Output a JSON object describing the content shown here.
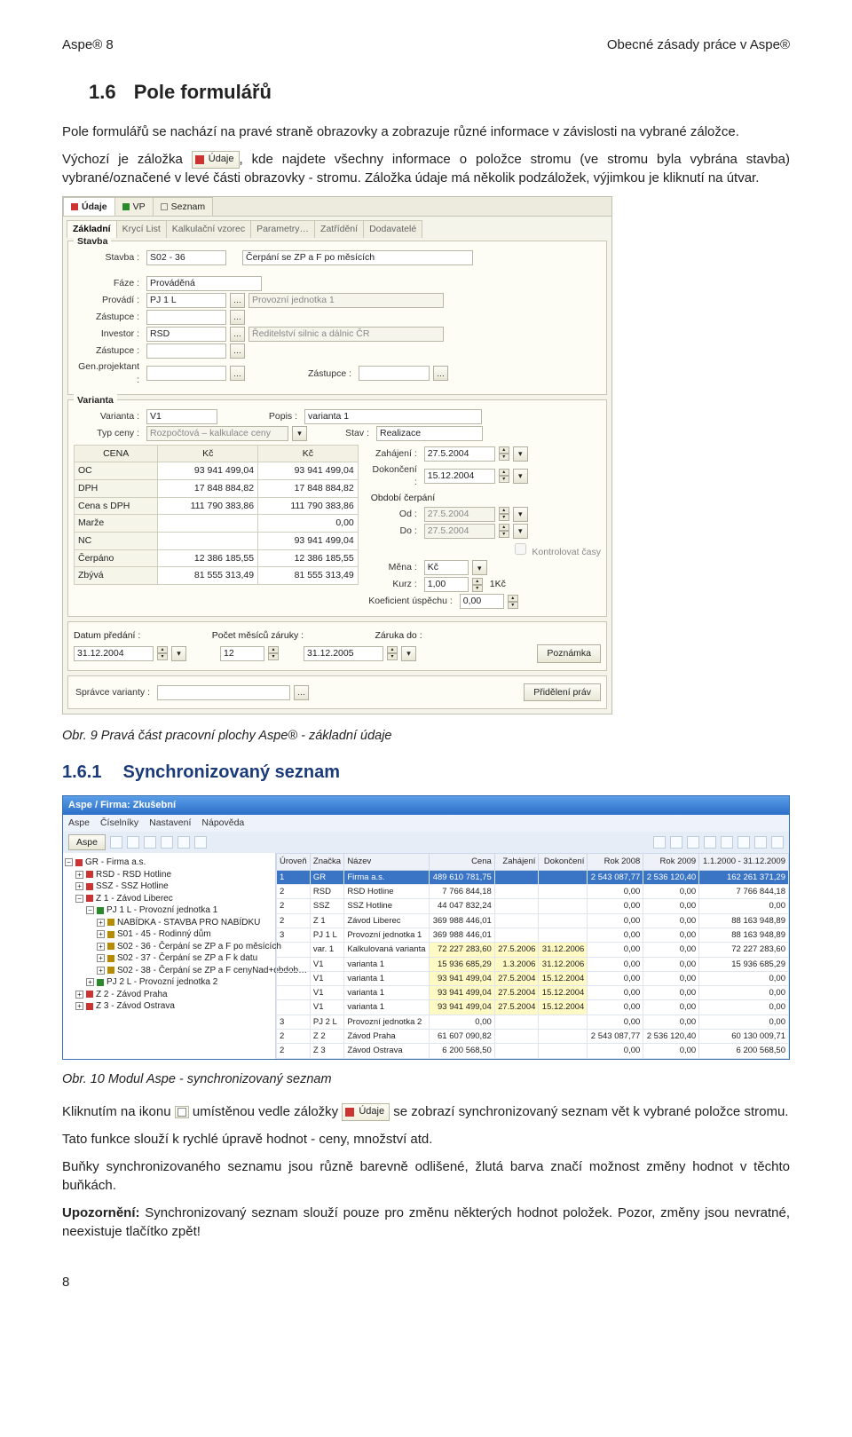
{
  "header": {
    "left": "Aspe® 8",
    "right": "Obecné zásady práce v Aspe®",
    "pageNum": "8"
  },
  "section": {
    "num": "1.6",
    "title": "Pole formulářů"
  },
  "para1": "Pole formulářů se nachází na pravé straně obrazovky a zobrazuje různé informace v závislosti na vybrané záložce.",
  "para2a": "Výchozí je záložka ",
  "para2b": ", kde najdete všechny informace o položce stromu (ve stromu byla vybrána stavba) vybrané/označené v levé části obrazovky - stromu. Záložka údaje má několik podzáložek, výjimkou je kliknutí na útvar.",
  "udajeTab": "Údaje",
  "caption1": "Obr. 9 Pravá část pracovní plochy Aspe® - základní údaje",
  "subsection": {
    "num": "1.6.1",
    "title": "Synchronizovaný seznam"
  },
  "caption2": "Obr. 10 Modul Aspe - synchronizovaný seznam",
  "para3a": "Kliknutím na ikonu ",
  "para3b": " umístěnou vedle záložky ",
  "para3c": " se zobrazí synchronizovaný seznam vět k vybrané položce stromu.",
  "para4": "Tato funkce slouží k rychlé úpravě hodnot - ceny, množství atd.",
  "para5": "Buňky synchronizovaného seznamu jsou různě barevně odlišené, žlutá barva značí možnost změny hodnot v těchto buňkách.",
  "para6a": "Upozornění:",
  "para6b": " Synchronizovaný seznam slouží pouze pro změnu některých hodnot položek. Pozor, změny jsou nevratné, neexistuje tlačítko zpět!",
  "form": {
    "topTabs": [
      "Údaje",
      "VP",
      "Seznam"
    ],
    "innerTabs": [
      "Základní",
      "Krycí List",
      "Kalkulační vzorec",
      "Parametry…",
      "Zatřídění",
      "Dodavatelé"
    ],
    "stavba": {
      "legend": "Stavba",
      "codeLbl": "Stavba :",
      "code": "S02 - 36",
      "name": "Čerpání se ZP a F po měsících",
      "fazeLbl": "Fáze :",
      "faze": "Prováděná",
      "provadiLbl": "Provádí :",
      "provadiCode": "PJ 1 L",
      "provadiName": "Provozní jednotka 1",
      "zastupceLbl": "Zástupce :",
      "investorLbl": "Investor :",
      "investorCode": "RSD",
      "investorName": "Ředitelství silnic a dálnic ČR",
      "genProjLbl": "Gen.projektant :",
      "zastupce2Lbl": "Zástupce :"
    },
    "varianta": {
      "legend": "Varianta",
      "varLbl": "Varianta :",
      "varCode": "V1",
      "popisLbl": "Popis :",
      "popis": "varianta 1",
      "typLbl": "Typ ceny :",
      "typ": "Rozpočtová – kalkulace ceny",
      "stavLbl": "Stav :",
      "stav": "Realizace"
    },
    "priceHead": [
      "CENA",
      "Kč",
      "Kč"
    ],
    "priceRows": [
      [
        "OC",
        "93 941 499,04",
        "93 941 499,04"
      ],
      [
        "DPH",
        "17 848 884,82",
        "17 848 884,82"
      ],
      [
        "Cena s DPH",
        "111 790 383,86",
        "111 790 383,86"
      ],
      [
        "Marže",
        "",
        "0,00"
      ],
      [
        "NC",
        "",
        "93 941 499,04"
      ],
      [
        "Čerpáno",
        "12 386 185,55",
        "12 386 185,55"
      ],
      [
        "Zbývá",
        "81 555 313,49",
        "81 555 313,49"
      ]
    ],
    "dates": {
      "zahajeniLbl": "Zahájení :",
      "zahajeni": "27.5.2004",
      "dokonceniLbl": "Dokončení :",
      "dokonceni": "15.12.2004",
      "obdobiLbl": "Období čerpání",
      "odLbl": "Od :",
      "od": "27.5.2004",
      "doLbl": "Do :",
      "do": "27.5.2004",
      "kontrolLbl": "Kontrolovat časy",
      "menaLbl": "Měna :",
      "mena": "Kč",
      "kurzLbl": "Kurz :",
      "kurz": "1,00",
      "kurzUnit": "1Kč",
      "koefLbl": "Koeficient úspěchu :",
      "koef": "0,00"
    },
    "bottom": {
      "datumPredaniLbl": "Datum předání :",
      "datumPredani": "31.12.2004",
      "pocetMesLbl": "Počet měsíců záruky :",
      "pocetMes": "12",
      "zarukaDoLbl": "Záruka do :",
      "zarukaDo": "31.12.2005",
      "poznamkaBtn": "Poznámka",
      "spravceLbl": "Správce varianty :",
      "prideleniBtn": "Přidělení práv"
    }
  },
  "sync": {
    "title": "Aspe / Firma: Zkušební",
    "menus": [
      "Aspe",
      "Číselníky",
      "Nastavení",
      "Nápověda"
    ],
    "aspeBtn": "Aspe",
    "treeNodes": [
      {
        "pad": 0,
        "exp": "−",
        "ico": "#cc3333",
        "txt": "GR - Firma a.s."
      },
      {
        "pad": 1,
        "exp": "+",
        "ico": "#cc3333",
        "txt": "RSD - RSD Hotline"
      },
      {
        "pad": 1,
        "exp": "+",
        "ico": "#cc3333",
        "txt": "SSZ - SSZ Hotline"
      },
      {
        "pad": 1,
        "exp": "−",
        "ico": "#cc3333",
        "txt": "Z 1 - Závod Liberec"
      },
      {
        "pad": 2,
        "exp": "−",
        "ico": "#2a8a2a",
        "txt": "PJ 1 L - Provozní jednotka 1"
      },
      {
        "pad": 3,
        "exp": "+",
        "ico": "#b88a00",
        "txt": "NABÍDKA - STAVBA PRO NABÍDKU"
      },
      {
        "pad": 3,
        "exp": "+",
        "ico": "#b88a00",
        "txt": "S01 - 45 - Rodinný dům"
      },
      {
        "pad": 3,
        "exp": "+",
        "ico": "#b88a00",
        "txt": "S02 - 36 - Čerpání se ZP a F po měsících"
      },
      {
        "pad": 3,
        "exp": "+",
        "ico": "#b88a00",
        "txt": "S02 - 37 - Čerpání se ZP a F k datu"
      },
      {
        "pad": 3,
        "exp": "+",
        "ico": "#b88a00",
        "txt": "S02 - 38 - Čerpání se ZP a F cenyNad+obdob…"
      },
      {
        "pad": 2,
        "exp": "+",
        "ico": "#2a8a2a",
        "txt": "PJ 2 L - Provozní jednotka 2"
      },
      {
        "pad": 1,
        "exp": "+",
        "ico": "#cc3333",
        "txt": "Z 2 - Závod Praha"
      },
      {
        "pad": 1,
        "exp": "+",
        "ico": "#cc3333",
        "txt": "Z 3 - Závod Ostrava"
      }
    ],
    "cols": [
      "Úroveň",
      "Značka",
      "Název",
      "Cena",
      "Zahájení",
      "Dokončení",
      "Rok 2008",
      "Rok 2009",
      "1.1.2000 - 31.12.2009"
    ],
    "rows": [
      {
        "sel": true,
        "lvl": "1",
        "zn": "GR",
        "naz": "Firma a.s.",
        "cena": "489 610 781,75",
        "zah": "",
        "dok": "",
        "r08": "2 543 087,77",
        "r09": "2 536 120,40",
        "rng": "162 261 371,29"
      },
      {
        "lvl": "2",
        "zn": "RSD",
        "naz": "RSD Hotline",
        "cena": "7 766 844,18",
        "zah": "",
        "dok": "",
        "r08": "0,00",
        "r09": "0,00",
        "rng": "7 766 844,18"
      },
      {
        "lvl": "2",
        "zn": "SSZ",
        "naz": "SSZ Hotline",
        "cena": "44 047 832,24",
        "zah": "",
        "dok": "",
        "r08": "0,00",
        "r09": "0,00",
        "rng": "0,00"
      },
      {
        "lvl": "2",
        "zn": "Z 1",
        "naz": "Závod Liberec",
        "cena": "369 988 446,01",
        "zah": "",
        "dok": "",
        "r08": "0,00",
        "r09": "0,00",
        "rng": "88 163 948,89"
      },
      {
        "lvl": "3",
        "zn": "PJ 1 L",
        "naz": "Provozní jednotka 1",
        "cena": "369 988 446,01",
        "zah": "",
        "dok": "",
        "r08": "0,00",
        "r09": "0,00",
        "rng": "88 163 948,89"
      },
      {
        "y": true,
        "lvl": "",
        "zn": "var. 1",
        "naz": "Kalkulovaná varianta",
        "cena": "72 227 283,60",
        "zah": "27.5.2006",
        "dok": "31.12.2006",
        "r08": "0,00",
        "r09": "0,00",
        "rng": "72 227 283,60"
      },
      {
        "y": true,
        "lvl": "",
        "zn": "V1",
        "naz": "varianta 1",
        "cena": "15 936 685,29",
        "zah": "1.3.2006",
        "dok": "31.12.2006",
        "r08": "0,00",
        "r09": "0,00",
        "rng": "15 936 685,29"
      },
      {
        "y": true,
        "lvl": "",
        "zn": "V1",
        "naz": "varianta 1",
        "cena": "93 941 499,04",
        "zah": "27.5.2004",
        "dok": "15.12.2004",
        "r08": "0,00",
        "r09": "0,00",
        "rng": "0,00"
      },
      {
        "y": true,
        "lvl": "",
        "zn": "V1",
        "naz": "varianta 1",
        "cena": "93 941 499,04",
        "zah": "27.5.2004",
        "dok": "15.12.2004",
        "r08": "0,00",
        "r09": "0,00",
        "rng": "0,00"
      },
      {
        "y": true,
        "lvl": "",
        "zn": "V1",
        "naz": "varianta 1",
        "cena": "93 941 499,04",
        "zah": "27.5.2004",
        "dok": "15.12.2004",
        "r08": "0,00",
        "r09": "0,00",
        "rng": "0,00"
      },
      {
        "lvl": "3",
        "zn": "PJ 2 L",
        "naz": "Provozní jednotka 2",
        "cena": "0,00",
        "zah": "",
        "dok": "",
        "r08": "0,00",
        "r09": "0,00",
        "rng": "0,00"
      },
      {
        "lvl": "2",
        "zn": "Z 2",
        "naz": "Závod Praha",
        "cena": "61 607 090,82",
        "zah": "",
        "dok": "",
        "r08": "2 543 087,77",
        "r09": "2 536 120,40",
        "rng": "60 130 009,71"
      },
      {
        "lvl": "2",
        "zn": "Z 3",
        "naz": "Závod Ostrava",
        "cena": "6 200 568,50",
        "zah": "",
        "dok": "",
        "r08": "0,00",
        "r09": "0,00",
        "rng": "6 200 568,50"
      }
    ]
  }
}
